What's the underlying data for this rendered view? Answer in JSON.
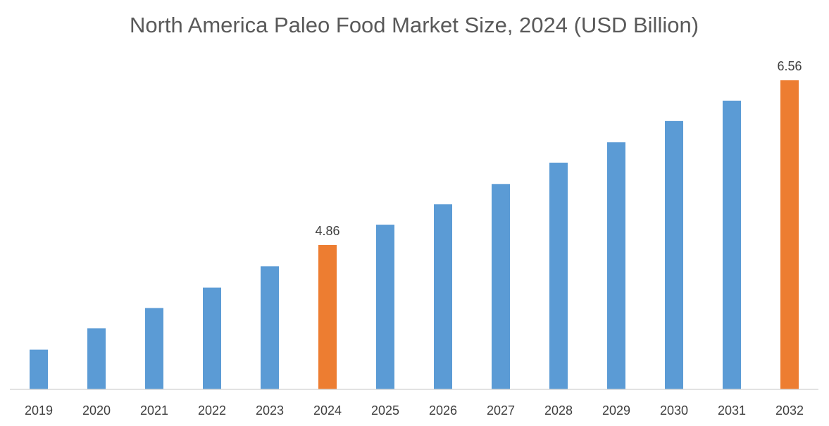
{
  "chart_data": {
    "type": "bar",
    "title": "North America Paleo Food Market Size, 2024 (USD Billion)",
    "xlabel": "",
    "ylabel": "",
    "categories": [
      "2019",
      "2020",
      "2021",
      "2022",
      "2023",
      "2024",
      "2025",
      "2026",
      "2027",
      "2028",
      "2029",
      "2030",
      "2031",
      "2032"
    ],
    "values": [
      3.78,
      4.0,
      4.21,
      4.42,
      4.64,
      4.86,
      5.07,
      5.28,
      5.49,
      5.71,
      5.92,
      6.14,
      6.35,
      6.56
    ],
    "data_labels": {
      "2024": "4.86",
      "2032": "6.56"
    },
    "highlight_categories": [
      "2024",
      "2032"
    ],
    "ylim": [
      3.37,
      6.85
    ],
    "grid": false,
    "y_axis_visible": false,
    "colors": {
      "bar": "#5B9BD5",
      "highlight": "#ED7D31",
      "title": "#595959",
      "axis": "#D9D9D9",
      "tick_label": "#404040"
    }
  }
}
